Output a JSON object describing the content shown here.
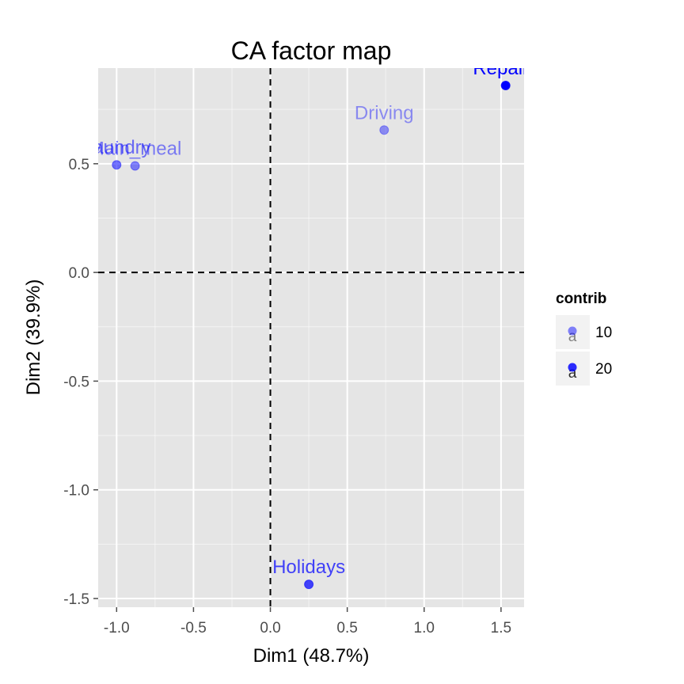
{
  "chart_data": {
    "type": "scatter",
    "title": "CA factor map",
    "xlabel": "Dim1 (48.7%)",
    "ylabel": "Dim2 (39.9%)",
    "xlim": [
      -1.12,
      1.65
    ],
    "ylim": [
      -1.54,
      0.94
    ],
    "x_ticks": [
      -1.0,
      -0.5,
      0.0,
      0.5,
      1.0,
      1.5
    ],
    "x_tick_labels": [
      "-1.0",
      "-0.5",
      "0.0",
      "0.5",
      "1.0",
      "1.5"
    ],
    "y_ticks": [
      -1.5,
      -1.0,
      -0.5,
      0.0,
      0.5
    ],
    "y_tick_labels": [
      "-1.5",
      "-1.0",
      "-0.5",
      "0.0",
      "0.5"
    ],
    "grid": true,
    "reference_lines": {
      "x": 0,
      "y": 0,
      "style": "dashed"
    },
    "point_color": "#0000ff",
    "panel_background": "#e5e5e5",
    "grid_color": "#ffffff",
    "points": [
      {
        "label": "Laundry",
        "x": -1.0,
        "y": 0.495,
        "contrib": 12
      },
      {
        "label": "Main_meal",
        "x": -0.88,
        "y": 0.49,
        "contrib": 10
      },
      {
        "label": "Driving",
        "x": 0.74,
        "y": 0.655,
        "contrib": 8
      },
      {
        "label": "Repairs",
        "x": 1.53,
        "y": 0.86,
        "contrib": 25
      },
      {
        "label": "Holidays",
        "x": 0.25,
        "y": -1.435,
        "contrib": 17
      }
    ],
    "legend": {
      "title": "contrib",
      "position": "right",
      "entries": [
        {
          "label": "10",
          "value": 10,
          "key_glyph": "a"
        },
        {
          "label": "20",
          "value": 20,
          "key_glyph": "a"
        }
      ]
    }
  }
}
